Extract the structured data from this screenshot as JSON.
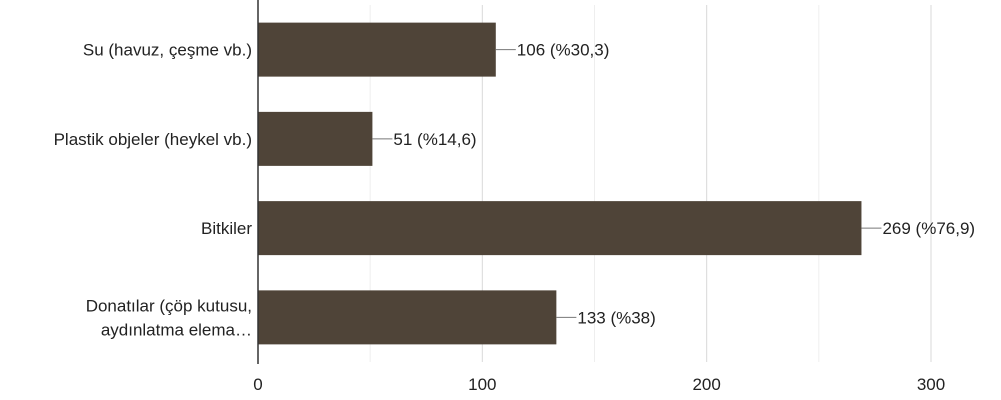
{
  "chart_data": {
    "type": "bar",
    "orientation": "horizontal",
    "categories": [
      [
        "Su (havuz, çeşme vb.)"
      ],
      [
        "Plastik objeler (heykel vb.)"
      ],
      [
        "Bitkiler"
      ],
      [
        "Donatılar (çöp kutusu,",
        "aydınlatma elema…"
      ]
    ],
    "values": [
      106,
      51,
      269,
      133
    ],
    "value_labels": [
      "106 (%30,3)",
      "51 (%14,6)",
      "269 (%76,9)",
      "133 (%38)"
    ],
    "xlim": [
      0,
      300
    ],
    "xticks": [
      0,
      100,
      200,
      300
    ],
    "grid": true,
    "bar_color": "#4f4438",
    "title": "",
    "xlabel": "",
    "ylabel": ""
  }
}
